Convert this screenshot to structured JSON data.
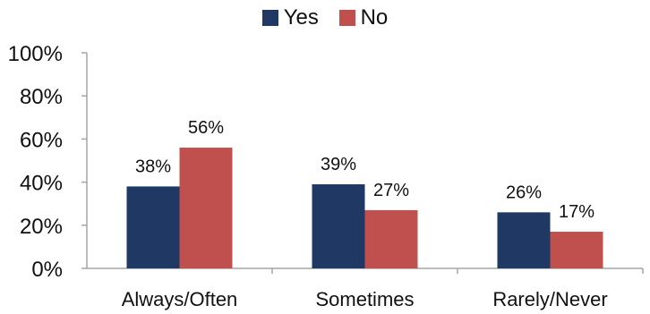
{
  "chart_data": {
    "type": "bar",
    "title": "",
    "xlabel": "",
    "ylabel": "",
    "categories": [
      "Always/Often",
      "Sometimes",
      "Rarely/Never"
    ],
    "series": [
      {
        "name": "Yes",
        "color": "#1f3864",
        "values": [
          38,
          39,
          26
        ],
        "labels": [
          "38%",
          "39%",
          "26%"
        ]
      },
      {
        "name": "No",
        "color": "#c0504d",
        "values": [
          56,
          27,
          17
        ],
        "labels": [
          "56%",
          "27%",
          "17%"
        ]
      }
    ],
    "ylim": [
      0,
      100
    ],
    "yticks": [
      0,
      20,
      40,
      60,
      80,
      100
    ],
    "ytick_labels": [
      "0%",
      "20%",
      "40%",
      "60%",
      "80%",
      "100%"
    ],
    "grid": false,
    "legend_position": "top-center"
  }
}
